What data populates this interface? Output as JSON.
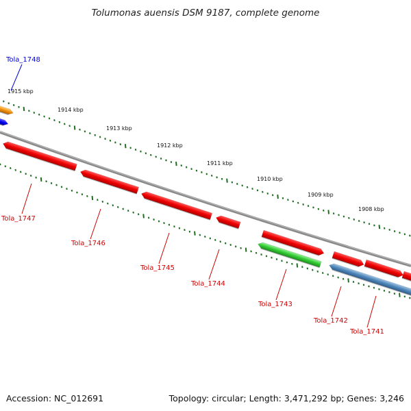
{
  "title": "Tolumonas auensis DSM 9187, complete genome",
  "accession": "Accession: NC_012691",
  "summary": "Topology: circular; Length: 3,471,292 bp; Genes: 3,246",
  "colors": {
    "backbone": "#8a8a8a",
    "tick": "#1f6e1f",
    "red_gene": "#e80000",
    "red_label": "#cc0000",
    "blue_label": "#0000cc",
    "blue_gene": "#0000ee",
    "orange_gene": "#f0900a",
    "green_gene": "#33cc33",
    "steel_gene": "#4f86b8"
  },
  "kbp_labels": [
    "1915 kbp",
    "1914 kbp",
    "1913 kbp",
    "1912 kbp",
    "1911 kbp",
    "1910 kbp",
    "1909 kbp",
    "1908 kbp"
  ],
  "genes": [
    {
      "name": "Tola_1748",
      "color": "blue"
    },
    {
      "name": "Tola_1747",
      "color": "red"
    },
    {
      "name": "Tola_1746",
      "color": "red"
    },
    {
      "name": "Tola_1745",
      "color": "red"
    },
    {
      "name": "Tola_1744",
      "color": "red"
    },
    {
      "name": "Tola_1743",
      "color": "red"
    },
    {
      "name": "Tola_1742",
      "color": "red"
    },
    {
      "name": "Tola_1741",
      "color": "red"
    }
  ]
}
